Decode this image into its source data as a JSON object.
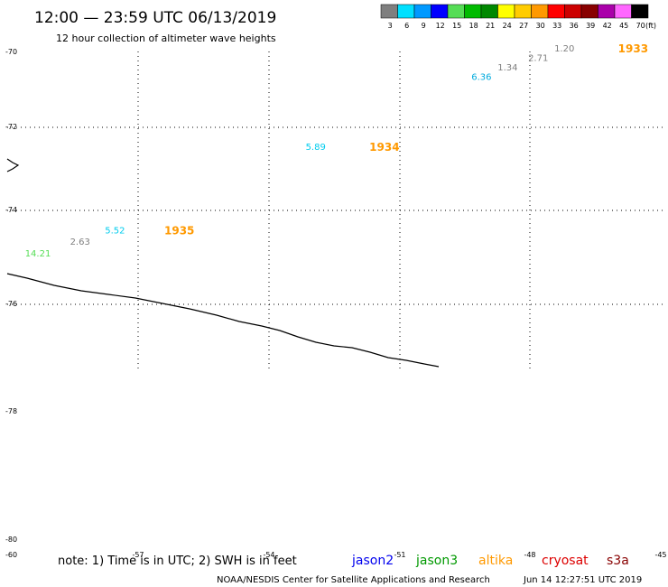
{
  "title": "12:00 — 23:59 UTC 06/13/2019",
  "subtitle": "12 hour collection of altimeter wave heights",
  "legend": {
    "unit": "(ft)",
    "bins": [
      {
        "label": "3",
        "color": "#7f7f7f"
      },
      {
        "label": "6",
        "color": "#00e0ff"
      },
      {
        "label": "9",
        "color": "#0099ff"
      },
      {
        "label": "12",
        "color": "#0000ff"
      },
      {
        "label": "15",
        "color": "#55dd55"
      },
      {
        "label": "18",
        "color": "#00bb00"
      },
      {
        "label": "21",
        "color": "#008800"
      },
      {
        "label": "24",
        "color": "#ffff00"
      },
      {
        "label": "27",
        "color": "#ffcc00"
      },
      {
        "label": "30",
        "color": "#ff9900"
      },
      {
        "label": "33",
        "color": "#ff0000"
      },
      {
        "label": "36",
        "color": "#cc0000"
      },
      {
        "label": "39",
        "color": "#880000"
      },
      {
        "label": "42",
        "color": "#aa00aa"
      },
      {
        "label": "45",
        "color": "#ff66ff"
      },
      {
        "label": "70",
        "color": "#000000"
      }
    ]
  },
  "chart_data": {
    "type": "scatter",
    "title": "12:00 — 23:59 UTC 06/13/2019",
    "subtitle": "12 hour collection of altimeter wave heights",
    "ylabels": [
      "-70",
      "-72",
      "-74",
      "-76",
      "-78",
      "-80"
    ],
    "xlabels_bottom": [
      "-60",
      "-57",
      "-54",
      "-51",
      "-48",
      "-45"
    ],
    "grid": true,
    "points": [
      {
        "value": "1.20",
        "color": "#7f7f7f",
        "lon": -47.0,
        "lat": -70.0
      },
      {
        "value": "2.71",
        "color": "#7f7f7f",
        "lon": -47.6,
        "lat": -70.25
      },
      {
        "value": "1.34",
        "color": "#7f7f7f",
        "lon": -48.3,
        "lat": -70.5
      },
      {
        "value": "6.36",
        "color": "#00aadd",
        "lon": -48.9,
        "lat": -70.75
      },
      {
        "value": "5.89",
        "color": "#00ccee",
        "lon": -52.7,
        "lat": -72.6
      },
      {
        "value": "5.52",
        "color": "#00ccee",
        "lon": -57.3,
        "lat": -74.8
      },
      {
        "value": "2.63",
        "color": "#7f7f7f",
        "lon": -58.1,
        "lat": -75.1
      },
      {
        "value": "14.21",
        "color": "#55dd55",
        "lon": -59.0,
        "lat": -75.4
      }
    ],
    "time_labels": [
      {
        "text": "1933",
        "color": "#ff9900",
        "lon": -46.0,
        "lat": -70.0
      },
      {
        "text": "1934",
        "color": "#ff9900",
        "lon": -51.7,
        "lat": -72.6
      },
      {
        "text": "1935",
        "color": "#ff9900",
        "lon": -56.4,
        "lat": -74.8
      }
    ]
  },
  "footer": {
    "note": "note: 1) Time is in UTC; 2) SWH is in feet",
    "satellites": [
      {
        "name": "jason2",
        "color": "#0000ee"
      },
      {
        "name": "jason3",
        "color": "#009900"
      },
      {
        "name": "altika",
        "color": "#ff9900"
      },
      {
        "name": "cryosat",
        "color": "#dd0000"
      },
      {
        "name": "s3a",
        "color": "#880000"
      }
    ],
    "credit": "NOAA/NESDIS Center for Satellite Applications and Research",
    "timestamp": "Jun 14 12:27:51 UTC 2019"
  }
}
